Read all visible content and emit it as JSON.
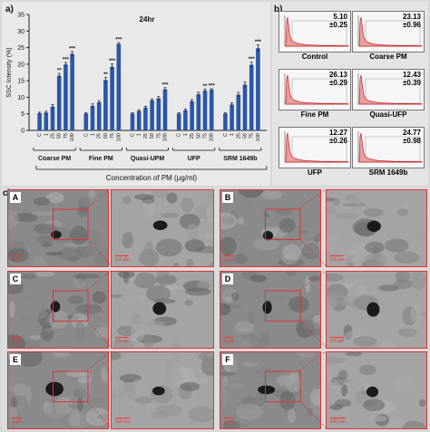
{
  "panel_labels": {
    "a": "a)",
    "b": "b)",
    "c": "c)"
  },
  "chart_data": {
    "type": "bar",
    "title": "24hr",
    "ylabel": "SSC Intensity (%)",
    "xlabel": "Concentration of PM (μg/ml)",
    "ylim": [
      0,
      35
    ],
    "yticks": [
      0,
      5,
      10,
      15,
      20,
      25,
      30,
      35
    ],
    "color": "#2b57a7",
    "groups": [
      {
        "name": "Coarse PM",
        "categories": [
          "C",
          "1",
          "25",
          "50",
          "75",
          "100"
        ],
        "values": [
          5.2,
          5.4,
          7.2,
          16.5,
          19.9,
          23.1
        ],
        "errors": [
          0.3,
          0.4,
          0.6,
          0.7,
          0.6,
          0.7
        ],
        "significance": [
          "",
          "",
          "",
          "**",
          "***",
          "***"
        ]
      },
      {
        "name": "Fine PM",
        "categories": [
          "C",
          "1",
          "25",
          "50",
          "75",
          "100"
        ],
        "values": [
          5.1,
          7.4,
          8.5,
          15.2,
          19.2,
          26.1
        ],
        "errors": [
          0.3,
          0.6,
          0.5,
          0.8,
          0.9,
          0.4
        ],
        "significance": [
          "",
          "",
          "",
          "**",
          "***",
          "***"
        ]
      },
      {
        "name": "Quasi-UPM",
        "categories": [
          "C",
          "1",
          "25",
          "50",
          "75",
          "100"
        ],
        "values": [
          5.1,
          5.9,
          6.9,
          9.1,
          9.7,
          12.4
        ],
        "errors": [
          0.2,
          0.3,
          0.4,
          0.4,
          0.5,
          0.5
        ],
        "significance": [
          "",
          "",
          "",
          "",
          "",
          "***"
        ]
      },
      {
        "name": "UFP",
        "categories": [
          "C",
          "1",
          "25",
          "50",
          "75",
          "100"
        ],
        "values": [
          5.1,
          6.1,
          8.8,
          10.9,
          12.0,
          12.3
        ],
        "errors": [
          0.2,
          0.4,
          0.5,
          0.6,
          0.5,
          0.3
        ],
        "significance": [
          "",
          "",
          "",
          "",
          "**",
          "***"
        ]
      },
      {
        "name": "SRM 1649b",
        "categories": [
          "C",
          "1",
          "25",
          "50",
          "75",
          "100"
        ],
        "values": [
          5.1,
          7.8,
          10.8,
          13.8,
          19.8,
          24.8
        ],
        "errors": [
          0.2,
          0.5,
          0.7,
          0.8,
          0.8,
          1.0
        ],
        "significance": [
          "",
          "",
          "",
          "",
          "***",
          "***"
        ]
      }
    ]
  },
  "histograms": [
    {
      "name": "Control",
      "value": "5.10\n±0.25"
    },
    {
      "name": "Coarse PM",
      "value": "23.13\n±0.96"
    },
    {
      "name": "Fine PM",
      "value": "26.13\n±0.29"
    },
    {
      "name": "Quasi-UFP",
      "value": "12.43\n±0.39"
    },
    {
      "name": "UFP",
      "value": "12.27\n±0.26"
    },
    {
      "name": "SRM 1649b",
      "value": "24.77\n±0.98"
    }
  ],
  "tem_panels": [
    {
      "letter": "A",
      "scale_left": "2 μm",
      "scale_right": "0.5 μm"
    },
    {
      "letter": "B",
      "scale_left": "2 μm",
      "scale_right": "0.5 μm"
    },
    {
      "letter": "C",
      "scale_left": "2 μm",
      "scale_right": "0.5 μm"
    },
    {
      "letter": "D",
      "scale_left": "2 μm",
      "scale_right": "0.5 μm"
    },
    {
      "letter": "E",
      "scale_left": "2 μm",
      "scale_right": "500 nm"
    },
    {
      "letter": "F",
      "scale_left": "2 μm",
      "scale_right": "500 nm"
    }
  ]
}
